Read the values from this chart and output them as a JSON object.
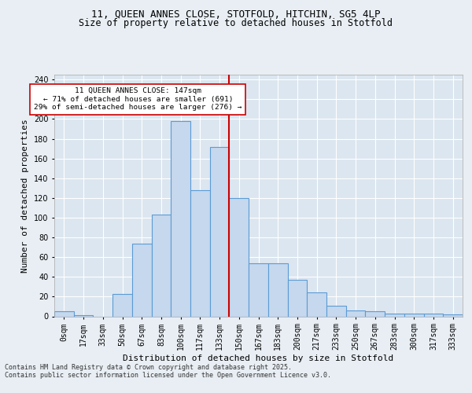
{
  "title_line1": "11, QUEEN ANNES CLOSE, STOTFOLD, HITCHIN, SG5 4LP",
  "title_line2": "Size of property relative to detached houses in Stotfold",
  "xlabel": "Distribution of detached houses by size in Stotfold",
  "ylabel": "Number of detached properties",
  "annotation_line1": "11 QUEEN ANNES CLOSE: 147sqm",
  "annotation_line2": "← 71% of detached houses are smaller (691)",
  "annotation_line3": "29% of semi-detached houses are larger (276) →",
  "footer_line1": "Contains HM Land Registry data © Crown copyright and database right 2025.",
  "footer_line2": "Contains public sector information licensed under the Open Government Licence v3.0.",
  "bin_labels": [
    "0sqm",
    "17sqm",
    "33sqm",
    "50sqm",
    "67sqm",
    "83sqm",
    "100sqm",
    "117sqm",
    "133sqm",
    "150sqm",
    "167sqm",
    "183sqm",
    "200sqm",
    "217sqm",
    "233sqm",
    "250sqm",
    "267sqm",
    "283sqm",
    "300sqm",
    "317sqm",
    "333sqm"
  ],
  "bar_values": [
    5,
    1,
    0,
    23,
    74,
    103,
    198,
    128,
    172,
    120,
    54,
    54,
    37,
    24,
    11,
    6,
    5,
    3,
    3,
    3,
    2
  ],
  "bar_color": "#c5d8ed",
  "bar_edge_color": "#5b9bd5",
  "vline_color": "#cc0000",
  "annotation_box_color": "#ffffff",
  "annotation_box_edge": "#cc0000",
  "ylim": [
    0,
    245
  ],
  "yticks": [
    0,
    20,
    40,
    60,
    80,
    100,
    120,
    140,
    160,
    180,
    200,
    220,
    240
  ],
  "background_color": "#e8eef4",
  "plot_background_color": "#dce6f0",
  "grid_color": "#ffffff",
  "title_fontsize": 9,
  "label_fontsize": 8,
  "tick_fontsize": 7,
  "footer_fontsize": 6
}
